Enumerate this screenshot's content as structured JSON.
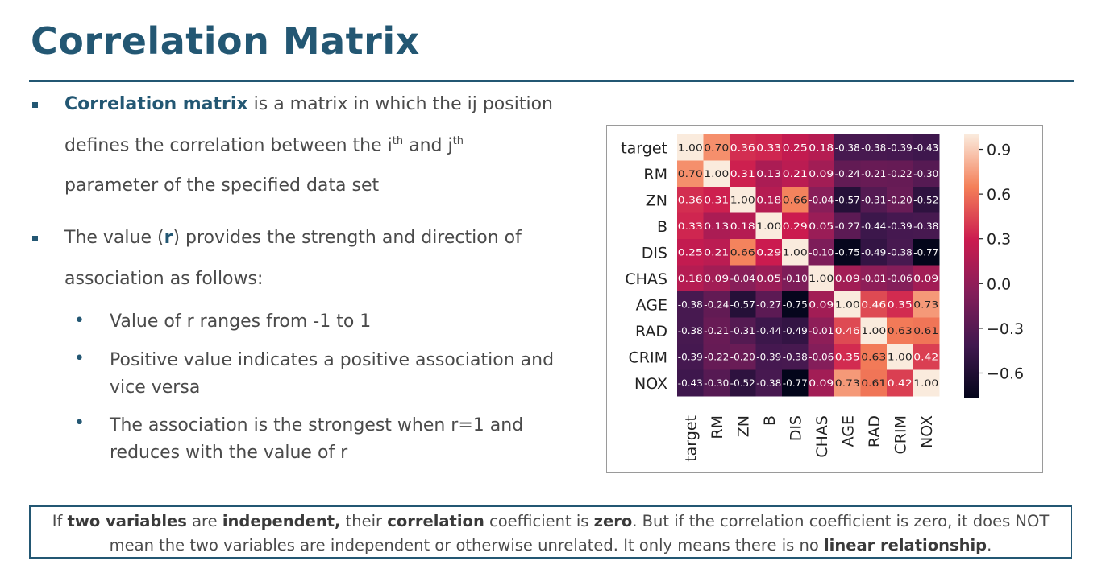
{
  "slide": {
    "title": "Correlation Matrix"
  },
  "bullets": {
    "b1_term": "Correlation matrix",
    "b1_line1_rest": " is a matrix in which the ij position",
    "b1_line2_a": "defines the correlation between the i",
    "b1_sup1": "th",
    "b1_line2_b": " and j",
    "b1_sup2": "th",
    "b1_line3": "parameter of the specified data set",
    "b2_line1_a": "The value (",
    "b2_r": "r",
    "b2_line1_b": ") provides the strength and direction of",
    "b2_line2": "association as follows:",
    "sub_items": [
      "Value of r ranges from -1 to 1",
      "Positive value indicates a positive association and vice versa",
      "The association is the strongest when r=1 and reduces with the value of r"
    ],
    "sub_bullet_glyph": "•"
  },
  "note": {
    "p1": "If ",
    "k1": "two variables",
    "p2": " are ",
    "k2": "independent,",
    "p3": " their ",
    "k3": "correlation",
    "p4": " coefficient is ",
    "k4": "zero",
    "p5": ". But if the correlation coefficient is zero, it does NOT mean the two variables are independent or otherwise unrelated. It only means there is no ",
    "k5": "linear relationship",
    "p6": "."
  },
  "chart_data": {
    "type": "heatmap",
    "row_labels": [
      "target",
      "RM",
      "ZN",
      "B",
      "DIS",
      "CHAS",
      "AGE",
      "RAD",
      "CRIM",
      "NOX"
    ],
    "col_labels": [
      "target",
      "RM",
      "ZN",
      "B",
      "DIS",
      "CHAS",
      "AGE",
      "RAD",
      "CRIM",
      "NOX"
    ],
    "cell_labels": [
      [
        "1.00",
        "0.70",
        "0.36",
        "0.33",
        "0.25",
        "0.18",
        "-0.38",
        "-0.38",
        "-0.39",
        "-0.43"
      ],
      [
        "0.70",
        "1.00",
        "0.31",
        "0.13",
        "0.21",
        "0.09",
        "-0.24",
        "-0.21",
        "-0.22",
        "-0.30"
      ],
      [
        "0.36",
        "0.31",
        "1.00",
        "0.18",
        "0.66",
        "-0.04",
        "-0.57",
        "-0.31",
        "-0.20",
        "-0.52"
      ],
      [
        "0.33",
        "0.13",
        "0.18",
        "1.00",
        "0.29",
        "0.05",
        "-0.27",
        "-0.44",
        "-0.39",
        "-0.38"
      ],
      [
        "0.25",
        "0.21",
        "0.66",
        "0.29",
        "1.00",
        "-0.10",
        "-0.75",
        "-0.49",
        "-0.38",
        "-0.77"
      ],
      [
        "0.18",
        "0.09",
        "-0.04",
        "0.05",
        "-0.10",
        "1.00",
        "0.09",
        "-0.01",
        "-0.06",
        "0.09"
      ],
      [
        "-0.38",
        "-0.24",
        "-0.57",
        "-0.27",
        "-0.75",
        "0.09",
        "1.00",
        "0.46",
        "0.35",
        "0.73"
      ],
      [
        "-0.38",
        "-0.21",
        "-0.31",
        "-0.44",
        "-0.49",
        "-0.01",
        "0.46",
        "1.00",
        "0.63",
        "0.61"
      ],
      [
        "-0.39",
        "-0.22",
        "-0.20",
        "-0.39",
        "-0.38",
        "-0.06",
        "0.35",
        "0.63",
        "1.00",
        "0.42"
      ],
      [
        "-0.43",
        "-0.30",
        "-0.52",
        "-0.38",
        "-0.77",
        "0.09",
        "0.73",
        "0.61",
        "0.42",
        "1.00"
      ]
    ],
    "colorbar": {
      "vmin": -0.77,
      "vmax": 1.0,
      "ticks": [
        0.9,
        0.6,
        0.3,
        0.0,
        -0.3,
        -0.6
      ],
      "tick_labels": [
        "0.9",
        "0.6",
        "0.3",
        "0.0",
        "−0.3",
        "−0.6"
      ],
      "colormap": "rocket"
    }
  }
}
